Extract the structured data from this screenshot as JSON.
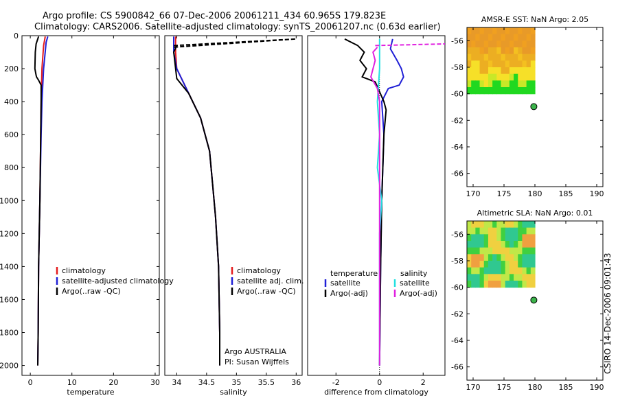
{
  "header": {
    "line1": "Argo profile: CS 5900842_66 07-Dec-2006 20061211_434 60.965S 179.823E",
    "line2": "Climatology: CARS2006. Satellite-adjusted climatology: synTS_20061207.nc (0.63d earlier)"
  },
  "side_label": "CSIRO 14-Dec-2006 09:01:43",
  "colors": {
    "red": "#e41a1c",
    "blue": "#1f1fd6",
    "black": "#000000",
    "cyan": "#22e0e0",
    "magenta": "#e020e0",
    "marker": "#3cb44b"
  },
  "chart_data": [
    {
      "id": "temp",
      "type": "line",
      "xlabel": "temperature",
      "xlim": [
        -2,
        31
      ],
      "ylim": [
        0,
        2060
      ],
      "xticks": [
        0,
        10,
        20,
        30
      ],
      "xtick_labels": [
        "0",
        "10",
        "20",
        "30"
      ],
      "yticks": [
        0,
        200,
        400,
        600,
        800,
        1000,
        1200,
        1400,
        1600,
        1800,
        2000
      ],
      "ytick_labels": [
        "0",
        "200",
        "400",
        "600",
        "800",
        "1000",
        "1200",
        "1400",
        "1600",
        "1800",
        "2000"
      ],
      "series": [
        {
          "name": "climatology",
          "color": "red",
          "x": [
            3.6,
            3.2,
            2.8,
            2.6,
            2.5,
            2.3,
            2.0,
            1.9,
            1.8
          ],
          "y": [
            5,
            60,
            200,
            400,
            600,
            1000,
            1400,
            1800,
            2000
          ]
        },
        {
          "name": "satellite-adjusted climatology",
          "color": "blue",
          "x": [
            4.2,
            3.8,
            3.2,
            2.8,
            2.6,
            2.3,
            2.0,
            1.9,
            1.8
          ],
          "y": [
            5,
            40,
            200,
            400,
            600,
            1000,
            1400,
            1800,
            2000
          ]
        },
        {
          "name": "Argo(..raw -QC)",
          "color": "black",
          "x": [
            2.0,
            1.4,
            1.2,
            1.1,
            1.4,
            1.5,
            2.0,
            2.6,
            2.6,
            2.5,
            2.3,
            2.0,
            1.9,
            1.8
          ],
          "y": [
            5,
            50,
            100,
            200,
            240,
            250,
            270,
            300,
            400,
            600,
            1000,
            1400,
            1800,
            2000
          ]
        }
      ],
      "legend": [
        "climatology",
        "satellite-adjusted climatology",
        "Argo(..raw -QC)"
      ]
    },
    {
      "id": "sal",
      "type": "line",
      "xlabel": "salinity",
      "xlim": [
        33.8,
        36.1
      ],
      "ylim": [
        0,
        2060
      ],
      "xticks": [
        34,
        34.5,
        35,
        35.5,
        36
      ],
      "xtick_labels": [
        "34",
        "34.5",
        "35",
        "35.5",
        "36"
      ],
      "series": [
        {
          "name": "climatology",
          "color": "red",
          "x": [
            33.98,
            33.98,
            34.0,
            34.2,
            34.4,
            34.55,
            34.6,
            34.65,
            34.7,
            34.72,
            34.72
          ],
          "y": [
            5,
            100,
            200,
            350,
            500,
            700,
            900,
            1100,
            1400,
            1800,
            2000
          ]
        },
        {
          "name": "satellite adj. clim.",
          "color": "blue",
          "x": [
            33.95,
            33.95,
            34.0,
            34.2,
            34.4,
            34.55,
            34.6,
            34.65,
            34.7,
            34.72,
            34.72
          ],
          "y": [
            5,
            100,
            200,
            350,
            500,
            700,
            900,
            1100,
            1400,
            1800,
            2000
          ]
        },
        {
          "name": "Argo(..raw -QC)",
          "color": "black",
          "x": [
            34.0,
            33.95,
            34.0,
            34.2,
            34.4,
            34.55,
            34.6,
            34.65,
            34.7,
            34.72,
            34.72
          ],
          "y": [
            60,
            100,
            260,
            350,
            500,
            700,
            900,
            1100,
            1400,
            1800,
            2000
          ]
        }
      ],
      "dashed": {
        "color": "black",
        "x": [
          33.95,
          36.0,
          33.95
        ],
        "y": [
          60,
          20,
          70
        ]
      },
      "legend": [
        "climatology",
        "satellite adj. clim.",
        "Argo(..raw -QC)"
      ],
      "annotations": [
        "Argo AUSTRALIA",
        "PI: Susan Wijffels"
      ]
    },
    {
      "id": "diff",
      "type": "line",
      "xlabel": "difference from climatology",
      "xlim": [
        -3.3,
        3.0
      ],
      "ylim": [
        0,
        2060
      ],
      "xticks": [
        -2,
        0,
        2
      ],
      "xtick_labels": [
        "-2",
        "0",
        "2"
      ],
      "series": [
        {
          "name": "temperature satellite",
          "color": "blue",
          "x": [
            0.6,
            0.5,
            0.8,
            1.0,
            1.1,
            0.9,
            0.4,
            0.1,
            0.2,
            0.1,
            0.05,
            0.0
          ],
          "y": [
            20,
            80,
            150,
            200,
            250,
            300,
            320,
            400,
            600,
            1000,
            1400,
            2000
          ]
        },
        {
          "name": "temperature Argo(-adj)",
          "color": "black",
          "x": [
            -1.6,
            -1.0,
            -0.7,
            -0.9,
            -0.6,
            -0.8,
            -0.2,
            0.2,
            0.3,
            0.2,
            0.1,
            0.05,
            0.0
          ],
          "y": [
            20,
            60,
            100,
            150,
            200,
            250,
            280,
            400,
            450,
            600,
            1000,
            1400,
            2000
          ]
        },
        {
          "name": "salinity satellite",
          "color": "cyan",
          "x": [
            0.0,
            0.0,
            -0.1,
            0.0,
            -0.1,
            0.1,
            0.0,
            0.0,
            0.0
          ],
          "y": [
            20,
            200,
            400,
            600,
            800,
            1000,
            1200,
            1600,
            2000
          ]
        },
        {
          "name": "salinity Argo(-adj)",
          "color": "magenta",
          "x": [
            -0.1,
            -0.3,
            -0.2,
            -0.4,
            -0.1,
            0.0,
            0.0
          ],
          "y": [
            70,
            100,
            150,
            250,
            320,
            400,
            2000
          ]
        }
      ],
      "dashed": {
        "color": "magenta",
        "x": [
          -0.2,
          3.0
        ],
        "y": [
          60,
          50
        ]
      },
      "legend_headers": [
        "temperature",
        "salinity"
      ],
      "legend_left": [
        "satellite",
        "Argo(-adj)"
      ],
      "legend_right": [
        "satellite",
        "Argo(-adj)"
      ]
    },
    {
      "id": "sst",
      "type": "heatmap",
      "title": "AMSR-E SST: NaN Argo: 2.05",
      "xlim": [
        169,
        191
      ],
      "ylim": [
        -67,
        -55
      ],
      "xticks": [
        170,
        175,
        180,
        185,
        190
      ],
      "xtick_labels": [
        "170",
        "175",
        "180",
        "185",
        "190"
      ],
      "yticks": [
        -56,
        -58,
        -60,
        -62,
        -64,
        -66
      ],
      "ytick_labels": [
        "-56",
        "-58",
        "-60",
        "-62",
        "-64",
        "-66"
      ],
      "marker": {
        "lon": 179.823,
        "lat": -60.965
      }
    },
    {
      "id": "sla",
      "type": "heatmap",
      "title": "Altimetric SLA: NaN Argo: 0.01",
      "xlim": [
        169,
        191
      ],
      "ylim": [
        -67,
        -55
      ],
      "xticks": [
        170,
        175,
        180,
        185,
        190
      ],
      "xtick_labels": [
        "170",
        "175",
        "180",
        "185",
        "190"
      ],
      "yticks": [
        -56,
        -58,
        -60,
        -62,
        -64,
        -66
      ],
      "ytick_labels": [
        "-56",
        "-58",
        "-60",
        "-62",
        "-64",
        "-66"
      ],
      "marker": {
        "lon": 179.823,
        "lat": -60.965
      }
    }
  ]
}
